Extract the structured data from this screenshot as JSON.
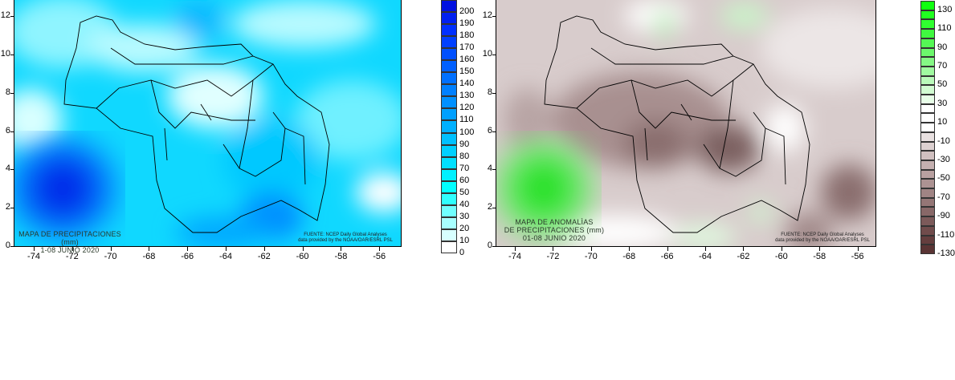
{
  "maps": [
    {
      "title_lines": [
        "MAPA DE PRECIPITACIONES (mm)",
        "1-08 JUNIO 2020"
      ],
      "source_lines": [
        "FUENTE: NCEP Daily Global Analyses",
        "data provided by the NOAA/OAR/ESRL PSL"
      ],
      "x_ticks": [
        "-74",
        "-72",
        "-70",
        "-68",
        "-66",
        "-64",
        "-62",
        "-60",
        "-58",
        "-56"
      ],
      "y_ticks": [
        "0",
        "2",
        "4",
        "6",
        "8",
        "10",
        "12"
      ],
      "colorbar": {
        "labels": [
          "200",
          "190",
          "180",
          "170",
          "160",
          "150",
          "140",
          "130",
          "120",
          "110",
          "100",
          "90",
          "80",
          "70",
          "60",
          "50",
          "40",
          "30",
          "20",
          "10",
          "0"
        ],
        "colors": [
          "#0010e0",
          "#0020f0",
          "#0030ff",
          "#0040ff",
          "#0050ff",
          "#0060ff",
          "#0070ff",
          "#0080ff",
          "#0090ff",
          "#00a0ff",
          "#00b0ff",
          "#00c0ff",
          "#00d0ff",
          "#00e0ff",
          "#00f0ff",
          "#00ffff",
          "#30ffff",
          "#70ffff",
          "#a8ffff",
          "#d8ffff",
          "#ffffff"
        ]
      }
    },
    {
      "title_lines": [
        "MAPA DE ANOMALÌAS",
        "DE PRECIPITACIONES (mm)",
        "01-08 JUNIO 2020"
      ],
      "source_lines": [
        "FUENTE: NCEP Daily Global Analyses",
        "data provided by the NOAA/OAR/ESRL PSL"
      ],
      "x_ticks": [
        "-74",
        "-72",
        "-70",
        "-68",
        "-66",
        "-64",
        "-62",
        "-60",
        "-58",
        "-56"
      ],
      "y_ticks": [
        "0",
        "2",
        "4",
        "6",
        "8",
        "10",
        "12"
      ],
      "colorbar": {
        "labels": [
          "130",
          "110",
          "90",
          "70",
          "50",
          "30",
          "10",
          "-10",
          "-30",
          "-50",
          "-70",
          "-90",
          "-110",
          "-130"
        ],
        "colors": [
          "#10ff10",
          "#20ff20",
          "#30ff30",
          "#40f840",
          "#55f855",
          "#6cf86c",
          "#85f885",
          "#a0faa0",
          "#bafaba",
          "#d2fcd2",
          "#e8fee8",
          "#ffffff",
          "#ffffff",
          "#ffffff",
          "#e8e0e0",
          "#dcd0d0",
          "#d0c0c0",
          "#c4b0b0",
          "#b8a0a0",
          "#ac9292",
          "#a08484",
          "#947676",
          "#886868",
          "#7c5a5a",
          "#704c4c",
          "#643e3e",
          "#5a3434"
        ]
      }
    }
  ]
}
